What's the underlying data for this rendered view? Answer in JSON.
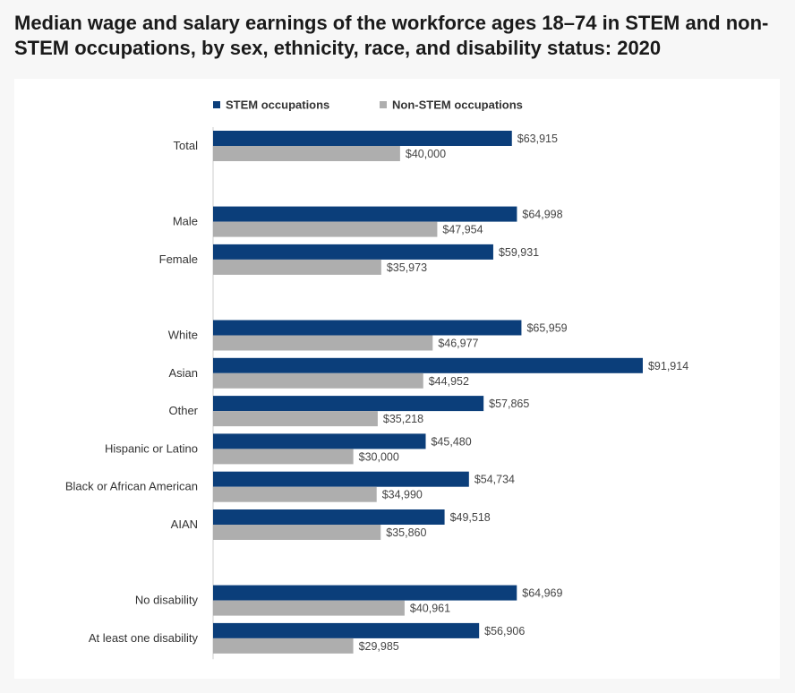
{
  "chart_data": {
    "type": "bar",
    "orientation": "horizontal",
    "title": "Median wage and salary earnings of the workforce ages 18–74 in STEM and non-STEM occupations, by sex, ethnicity, race, and disability status: 2020",
    "xlim": [
      0,
      100000
    ],
    "series": [
      {
        "name": "STEM occupations",
        "color": "#0b3e7a"
      },
      {
        "name": "Non-STEM occupations",
        "color": "#aeaeae"
      }
    ],
    "groups": [
      {
        "categories": [
          {
            "label": "Total",
            "values": [
              63915,
              40000
            ],
            "display": [
              "$63,915",
              "$40,000"
            ]
          }
        ]
      },
      {
        "categories": [
          {
            "label": "Male",
            "values": [
              64998,
              47954
            ],
            "display": [
              "$64,998",
              "$47,954"
            ]
          },
          {
            "label": "Female",
            "values": [
              59931,
              35973
            ],
            "display": [
              "$59,931",
              "$35,973"
            ]
          }
        ]
      },
      {
        "categories": [
          {
            "label": "White",
            "values": [
              65959,
              46977
            ],
            "display": [
              "$65,959",
              "$46,977"
            ]
          },
          {
            "label": "Asian",
            "values": [
              91914,
              44952
            ],
            "display": [
              "$91,914",
              "$44,952"
            ]
          },
          {
            "label": "Other",
            "values": [
              57865,
              35218
            ],
            "display": [
              "$57,865",
              "$35,218"
            ]
          },
          {
            "label": "Hispanic or Latino",
            "values": [
              45480,
              30000
            ],
            "display": [
              "$45,480",
              "$30,000"
            ]
          },
          {
            "label": "Black or African American",
            "values": [
              54734,
              34990
            ],
            "display": [
              "$54,734",
              "$34,990"
            ]
          },
          {
            "label": "AIAN",
            "values": [
              49518,
              35860
            ],
            "display": [
              "$49,518",
              "$35,860"
            ]
          }
        ]
      },
      {
        "categories": [
          {
            "label": "No disability",
            "values": [
              64969,
              40961
            ],
            "display": [
              "$64,969",
              "$40,961"
            ]
          },
          {
            "label": "At least one disability",
            "values": [
              56906,
              29985
            ],
            "display": [
              "$56,906",
              "$29,985"
            ]
          }
        ]
      }
    ]
  }
}
